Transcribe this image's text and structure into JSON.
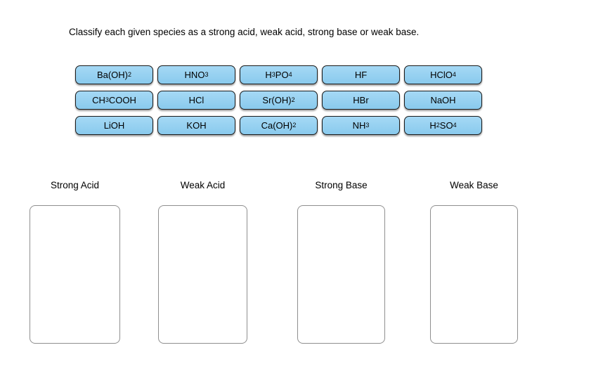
{
  "title": "Classify each given species as a strong acid, weak acid, strong base or weak base.",
  "species_bank": {
    "chip_fill_color": "#8CCEF2",
    "rows": [
      [
        "Ba(OH)_2",
        "HNO_3",
        "H_3_PO_4",
        "HF",
        "HClO_4"
      ],
      [
        "CH_3_COOH",
        "HCl",
        "Sr(OH)_2",
        "HBr",
        "NaOH"
      ],
      [
        "LiOH",
        "KOH",
        "Ca(OH)_2",
        "NH_3",
        "H_2_SO_4"
      ]
    ]
  },
  "categories": [
    {
      "label": "Strong Acid"
    },
    {
      "label": "Weak Acid"
    },
    {
      "label": "Strong Base"
    },
    {
      "label": "Weak Base"
    }
  ]
}
